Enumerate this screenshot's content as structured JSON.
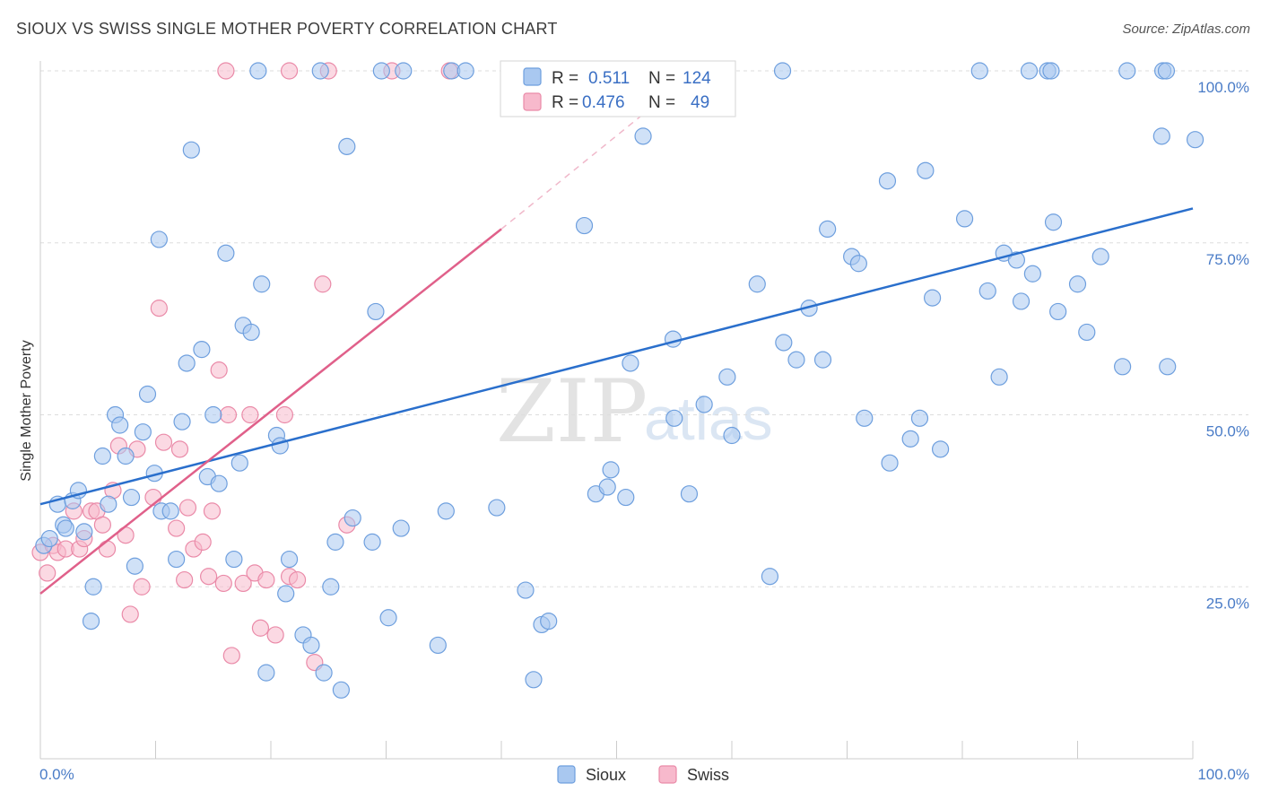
{
  "title": "SIOUX VS SWISS SINGLE MOTHER POVERTY CORRELATION CHART",
  "source": "Source: ZipAtlas.com",
  "watermark": {
    "zip": "ZIP",
    "atlas": "atlas"
  },
  "colors": {
    "sioux_fill": "#a9c8f0",
    "sioux_stroke": "#6e9fde",
    "sioux_line": "#2a6fcc",
    "swiss_fill": "#f7b9cc",
    "swiss_stroke": "#ea8aa8",
    "swiss_line": "#e0608a",
    "tick_text": "#4a7cc7",
    "grid": "#dddddd"
  },
  "legend": {
    "rows": [
      {
        "r_label": "R =",
        "r_value": "0.511",
        "n_label": "N =",
        "n_value": "124"
      },
      {
        "r_label": "R =",
        "r_value": "0.476",
        "n_label": "N =",
        "n_value": "49"
      }
    ]
  },
  "chart_data": {
    "type": "scatter",
    "xlabel": "",
    "ylabel": "Single Mother Poverty",
    "xlim": [
      0,
      100
    ],
    "ylim": [
      0,
      100
    ],
    "x_tick_labels": [
      "0.0%",
      "100.0%"
    ],
    "y_ticks": [
      {
        "value": 25,
        "label": "25.0%"
      },
      {
        "value": 50,
        "label": "50.0%"
      },
      {
        "value": 75,
        "label": "75.0%"
      },
      {
        "value": 100,
        "label": "100.0%"
      }
    ],
    "grid": true,
    "legend_position": "top-center",
    "series": [
      {
        "name": "Sioux",
        "r": 0.511,
        "n": 124,
        "trend": {
          "x": [
            0,
            100
          ],
          "y": [
            37,
            80
          ]
        },
        "points": [
          [
            0.3,
            31
          ],
          [
            0.8,
            32
          ],
          [
            1.5,
            37
          ],
          [
            2,
            34
          ],
          [
            2.2,
            33.5
          ],
          [
            2.8,
            37.5
          ],
          [
            3.3,
            39
          ],
          [
            3.8,
            33
          ],
          [
            4.4,
            20
          ],
          [
            4.6,
            25
          ],
          [
            5.4,
            44
          ],
          [
            5.9,
            37
          ],
          [
            6.5,
            50
          ],
          [
            6.9,
            48.5
          ],
          [
            7.4,
            44
          ],
          [
            7.9,
            38
          ],
          [
            8.2,
            28
          ],
          [
            8.9,
            47.5
          ],
          [
            9.3,
            53
          ],
          [
            9.9,
            41.5
          ],
          [
            10.3,
            75.5
          ],
          [
            10.5,
            36
          ],
          [
            11.3,
            36
          ],
          [
            11.8,
            29
          ],
          [
            12.3,
            49
          ],
          [
            12.7,
            57.5
          ],
          [
            13.1,
            88.5
          ],
          [
            14,
            59.5
          ],
          [
            14.5,
            41
          ],
          [
            15,
            50
          ],
          [
            15.5,
            40
          ],
          [
            16.1,
            73.5
          ],
          [
            16.8,
            29
          ],
          [
            17.3,
            43
          ],
          [
            17.6,
            63
          ],
          [
            18.3,
            62
          ],
          [
            19.2,
            69
          ],
          [
            19.6,
            12.5
          ],
          [
            20.5,
            47
          ],
          [
            20.8,
            45.5
          ],
          [
            21.3,
            24
          ],
          [
            21.6,
            29
          ],
          [
            22.8,
            18
          ],
          [
            23.5,
            16.5
          ],
          [
            24.6,
            12.5
          ],
          [
            25.2,
            25
          ],
          [
            25.6,
            31.5
          ],
          [
            26.1,
            10
          ],
          [
            26.6,
            89
          ],
          [
            27.1,
            35
          ],
          [
            28.8,
            31.5
          ],
          [
            29.1,
            65
          ],
          [
            30.2,
            20.5
          ],
          [
            31.3,
            33.5
          ],
          [
            34.5,
            16.5
          ],
          [
            35.2,
            36
          ],
          [
            39.6,
            36.5
          ],
          [
            42.1,
            24.5
          ],
          [
            42.8,
            11.5
          ],
          [
            43.5,
            19.5
          ],
          [
            44.1,
            20
          ],
          [
            47.2,
            77.5
          ],
          [
            48.2,
            38.5
          ],
          [
            49.2,
            39.5
          ],
          [
            49.5,
            42
          ],
          [
            50.8,
            38
          ],
          [
            51.2,
            57.5
          ],
          [
            52.3,
            90.5
          ],
          [
            55,
            49.5
          ],
          [
            54.9,
            61
          ],
          [
            56.3,
            38.5
          ],
          [
            57.6,
            51.5
          ],
          [
            59.6,
            55.5
          ],
          [
            60,
            47
          ],
          [
            62.2,
            69
          ],
          [
            63.3,
            26.5
          ],
          [
            64.5,
            60.5
          ],
          [
            65.6,
            58
          ],
          [
            66.7,
            65.5
          ],
          [
            67.9,
            58
          ],
          [
            68.3,
            77
          ],
          [
            70.4,
            73
          ],
          [
            71,
            72
          ],
          [
            71.5,
            49.5
          ],
          [
            73.5,
            84
          ],
          [
            73.7,
            43
          ],
          [
            75.5,
            46.5
          ],
          [
            76.3,
            49.5
          ],
          [
            76.8,
            85.5
          ],
          [
            77.4,
            67
          ],
          [
            78.1,
            45
          ],
          [
            80.2,
            78.5
          ],
          [
            82.2,
            68
          ],
          [
            83.2,
            55.5
          ],
          [
            83.6,
            73.5
          ],
          [
            84.7,
            72.5
          ],
          [
            85.1,
            66.5
          ],
          [
            86.1,
            70.5
          ],
          [
            87.9,
            78
          ],
          [
            88.3,
            65
          ],
          [
            90,
            69
          ],
          [
            90.8,
            62
          ],
          [
            92,
            73
          ],
          [
            93.9,
            57
          ],
          [
            97.3,
            90.5
          ],
          [
            97.8,
            57
          ],
          [
            100.2,
            90
          ]
        ]
      },
      {
        "name": "Swiss",
        "r": 0.476,
        "n": 49,
        "trend": {
          "x": [
            0,
            40
          ],
          "y": [
            24,
            77
          ]
        },
        "trend_dashed": {
          "x": [
            40,
            54
          ],
          "y": [
            77,
            96
          ]
        },
        "points": [
          [
            0,
            30
          ],
          [
            0.6,
            27
          ],
          [
            1.1,
            31
          ],
          [
            1.5,
            30
          ],
          [
            2.2,
            30.5
          ],
          [
            2.9,
            36
          ],
          [
            3.4,
            30.5
          ],
          [
            3.8,
            32
          ],
          [
            4.4,
            36
          ],
          [
            4.9,
            36
          ],
          [
            5.4,
            34
          ],
          [
            5.8,
            30.5
          ],
          [
            6.3,
            39
          ],
          [
            6.8,
            45.5
          ],
          [
            7.4,
            32.5
          ],
          [
            7.8,
            21
          ],
          [
            8.4,
            45
          ],
          [
            8.8,
            25
          ],
          [
            9.8,
            38
          ],
          [
            10.3,
            65.5
          ],
          [
            10.7,
            46
          ],
          [
            11.8,
            33.5
          ],
          [
            12.1,
            45
          ],
          [
            12.5,
            26
          ],
          [
            12.8,
            36.5
          ],
          [
            13.3,
            30.5
          ],
          [
            14.1,
            31.5
          ],
          [
            14.6,
            26.5
          ],
          [
            14.9,
            36
          ],
          [
            15.5,
            56.5
          ],
          [
            15.9,
            25.5
          ],
          [
            16.3,
            50
          ],
          [
            16.6,
            15
          ],
          [
            17.6,
            25.5
          ],
          [
            18.2,
            50
          ],
          [
            18.6,
            27
          ],
          [
            19.1,
            19
          ],
          [
            19.6,
            26
          ],
          [
            20.4,
            18
          ],
          [
            21.2,
            50
          ],
          [
            21.6,
            26.5
          ],
          [
            22.3,
            26
          ],
          [
            23.8,
            14
          ],
          [
            24.5,
            69
          ],
          [
            26.6,
            34
          ]
        ]
      }
    ],
    "top_points": {
      "sioux_x": [
        18.9,
        24.3,
        29.6,
        31.5,
        35.7,
        36.9,
        59.2,
        64.4,
        81.5,
        85.8,
        87.4,
        87.7,
        94.3,
        97.4,
        97.7
      ],
      "swiss_x": [
        16.1,
        21.6,
        25.0,
        30.5,
        35.5
      ],
      "y": 100
    }
  },
  "bottom_legend": [
    {
      "label": "Sioux"
    },
    {
      "label": "Swiss"
    }
  ]
}
